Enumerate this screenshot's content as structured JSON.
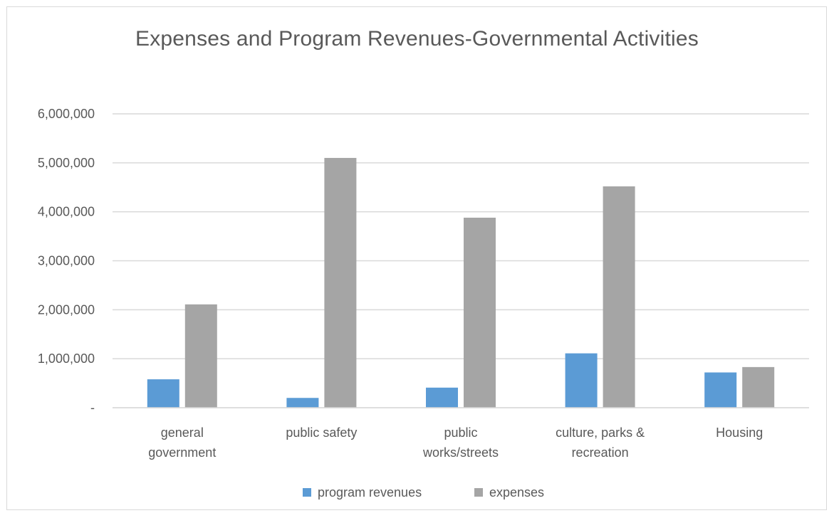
{
  "chart_data": {
    "type": "bar",
    "title": "Expenses and Program Revenues-Governmental  Activities",
    "categories": [
      [
        "general",
        "government"
      ],
      [
        "public safety"
      ],
      [
        "public",
        "works/streets"
      ],
      [
        "culture, parks &",
        "recreation"
      ],
      [
        "Housing"
      ]
    ],
    "series": [
      {
        "name": "program revenues",
        "color": "#5b9bd5",
        "values": [
          580000,
          200000,
          410000,
          1110000,
          720000
        ]
      },
      {
        "name": "expenses",
        "color": "#a5a5a5",
        "values": [
          2110000,
          5100000,
          3880000,
          4520000,
          830000
        ]
      }
    ],
    "ylim": [
      0,
      6000000
    ],
    "yticks": [
      {
        "value": 0,
        "label": "-"
      },
      {
        "value": 1000000,
        "label": "1,000,000"
      },
      {
        "value": 2000000,
        "label": "2,000,000"
      },
      {
        "value": 3000000,
        "label": "3,000,000"
      },
      {
        "value": 4000000,
        "label": "4,000,000"
      },
      {
        "value": 5000000,
        "label": "5,000,000"
      },
      {
        "value": 6000000,
        "label": "6,000,000"
      }
    ],
    "grid": true,
    "legend": "bottom",
    "colors": {
      "gridline": "#d9d9d9",
      "text": "#595959"
    }
  }
}
